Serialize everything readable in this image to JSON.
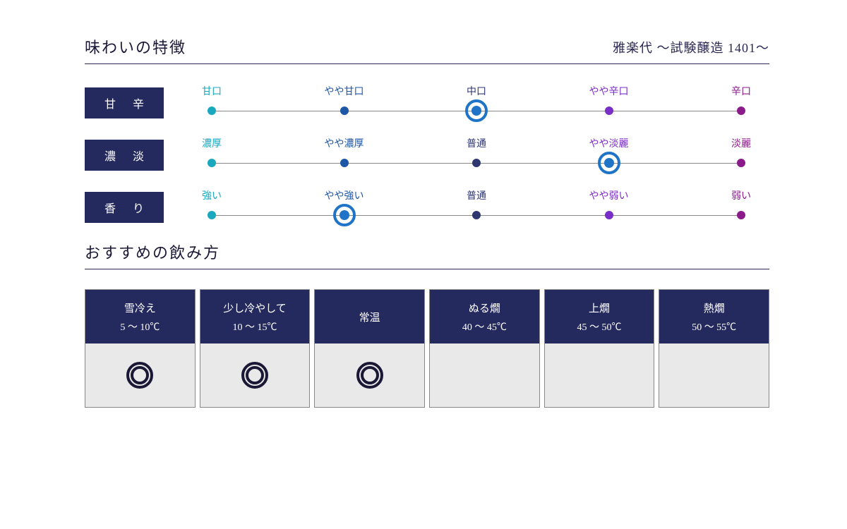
{
  "colors": {
    "navy": "#252a5e",
    "text_dark": "#1b1835",
    "cyan": "#1aa8bf",
    "blue": "#1d56a5",
    "indigo": "#2e3670",
    "purple": "#7a2ec8",
    "magenta": "#8b1a8b",
    "ring": "#1f74c8",
    "body_bg": "#e9e9e9",
    "line": "#888888"
  },
  "header": {
    "title": "味わいの特徴",
    "subtitle": "雅楽代 〜試験醸造 1401〜"
  },
  "taste_rows": [
    {
      "label": "甘 辛",
      "points": [
        "甘口",
        "やや甘口",
        "中口",
        "やや辛口",
        "辛口"
      ],
      "selected_index": 2
    },
    {
      "label": "濃 淡",
      "points": [
        "濃厚",
        "やや濃厚",
        "普通",
        "やや淡麗",
        "淡麗"
      ],
      "selected_index": 3
    },
    {
      "label": "香 り",
      "points": [
        "強い",
        "やや強い",
        "普通",
        "やや弱い",
        "弱い"
      ],
      "selected_index": 1
    }
  ],
  "scale_point_colors": [
    "#1aa8bf",
    "#1d56a5",
    "#2e3670",
    "#7a2ec8",
    "#8b1a8b"
  ],
  "serving": {
    "title": "おすすめの飲み方",
    "columns": [
      {
        "name": "雪冷え",
        "range": "5 〜 10℃",
        "recommended": true
      },
      {
        "name": "少し冷やして",
        "range": "10 〜 15℃",
        "recommended": true
      },
      {
        "name": "常温",
        "range": "",
        "recommended": true
      },
      {
        "name": "ぬる燗",
        "range": "40 〜 45℃",
        "recommended": false
      },
      {
        "name": "上燗",
        "range": "45 〜 50℃",
        "recommended": false
      },
      {
        "name": "熱燗",
        "range": "50 〜 55℃",
        "recommended": false
      }
    ]
  }
}
